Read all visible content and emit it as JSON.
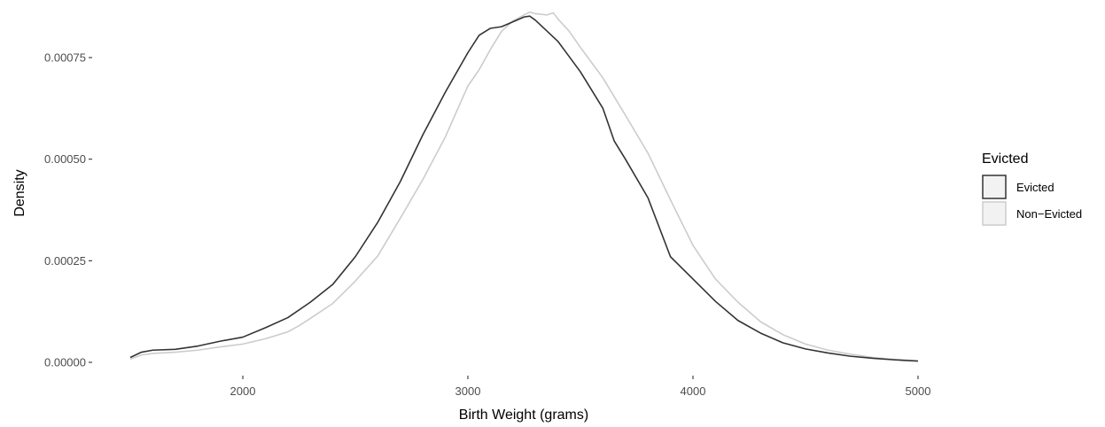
{
  "chart_data": {
    "type": "line",
    "subtype": "density",
    "xlabel": "Birth Weight (grams)",
    "ylabel": "Density",
    "xlim": [
      1500,
      5000
    ],
    "ylim": [
      0,
      0.00085
    ],
    "grid": false,
    "legend_position": "right",
    "x_ticks": [
      {
        "value": 2000,
        "label": "2000"
      },
      {
        "value": 3000,
        "label": "3000"
      },
      {
        "value": 4000,
        "label": "4000"
      },
      {
        "value": 5000,
        "label": "5000"
      }
    ],
    "y_ticks": [
      {
        "value": 0,
        "label": "0.00000"
      },
      {
        "value": 0.00025,
        "label": "0.00025"
      },
      {
        "value": 0.0005,
        "label": "0.00050"
      },
      {
        "value": 0.00075,
        "label": "0.00075"
      }
    ],
    "legend": {
      "title": "Evicted",
      "items": [
        {
          "label": "Evicted",
          "color": "#333333",
          "fill": "#f2f2f2"
        },
        {
          "label": "Non−Evicted",
          "color": "#cccccc",
          "fill": "#f2f2f2"
        }
      ]
    },
    "series": [
      {
        "name": "Evicted",
        "color": "#333333",
        "points": [
          [
            1500,
            1.2e-05
          ],
          [
            1550,
            2.5e-05
          ],
          [
            1600,
            3e-05
          ],
          [
            1700,
            3.2e-05
          ],
          [
            1800,
            4e-05
          ],
          [
            1900,
            5.2e-05
          ],
          [
            2000,
            6.2e-05
          ],
          [
            2100,
            8.5e-05
          ],
          [
            2200,
            0.00011
          ],
          [
            2300,
            0.000148
          ],
          [
            2400,
            0.000192
          ],
          [
            2500,
            0.00026
          ],
          [
            2600,
            0.000345
          ],
          [
            2700,
            0.000445
          ],
          [
            2800,
            0.00056
          ],
          [
            2900,
            0.000665
          ],
          [
            3000,
            0.000762
          ],
          [
            3050,
            0.000805
          ],
          [
            3100,
            0.000822
          ],
          [
            3150,
            0.000826
          ],
          [
            3200,
            0.000838
          ],
          [
            3250,
            0.00085
          ],
          [
            3275,
            0.000852
          ],
          [
            3300,
            0.000842
          ],
          [
            3400,
            0.00079
          ],
          [
            3500,
            0.000715
          ],
          [
            3600,
            0.000625
          ],
          [
            3650,
            0.000545
          ],
          [
            3700,
            0.0005
          ],
          [
            3800,
            0.000405
          ],
          [
            3900,
            0.00026
          ],
          [
            4000,
            0.000205
          ],
          [
            4100,
            0.00015
          ],
          [
            4200,
            0.000103
          ],
          [
            4300,
            7.2e-05
          ],
          [
            4400,
            4.8e-05
          ],
          [
            4500,
            3.3e-05
          ],
          [
            4600,
            2.3e-05
          ],
          [
            4700,
            1.5e-05
          ],
          [
            4800,
            1e-05
          ],
          [
            4900,
            6e-06
          ],
          [
            5000,
            3e-06
          ]
        ]
      },
      {
        "name": "Non−Evicted",
        "color": "#cccccc",
        "points": [
          [
            1500,
            8e-06
          ],
          [
            1550,
            1.8e-05
          ],
          [
            1600,
            2.2e-05
          ],
          [
            1700,
            2.5e-05
          ],
          [
            1800,
            3e-05
          ],
          [
            1900,
            3.8e-05
          ],
          [
            2000,
            4.5e-05
          ],
          [
            2100,
            5.8e-05
          ],
          [
            2200,
            7.5e-05
          ],
          [
            2250,
            9e-05
          ],
          [
            2300,
            0.000108
          ],
          [
            2400,
            0.000145
          ],
          [
            2500,
            0.0002
          ],
          [
            2600,
            0.000262
          ],
          [
            2700,
            0.000355
          ],
          [
            2800,
            0.00045
          ],
          [
            2900,
            0.000555
          ],
          [
            3000,
            0.00068
          ],
          [
            3050,
            0.00072
          ],
          [
            3100,
            0.00077
          ],
          [
            3150,
            0.000815
          ],
          [
            3200,
            0.00084
          ],
          [
            3250,
            0.000855
          ],
          [
            3275,
            0.000862
          ],
          [
            3300,
            0.000858
          ],
          [
            3350,
            0.000855
          ],
          [
            3380,
            0.00086
          ],
          [
            3400,
            0.000845
          ],
          [
            3450,
            0.000815
          ],
          [
            3500,
            0.000775
          ],
          [
            3600,
            0.0007
          ],
          [
            3700,
            0.000608
          ],
          [
            3800,
            0.000515
          ],
          [
            3900,
            0.0004
          ],
          [
            4000,
            0.000288
          ],
          [
            4100,
            0.000205
          ],
          [
            4200,
            0.000148
          ],
          [
            4300,
            0.0001
          ],
          [
            4400,
            6.8e-05
          ],
          [
            4500,
            4.5e-05
          ],
          [
            4600,
            3e-05
          ],
          [
            4700,
            2e-05
          ],
          [
            4800,
            1.2e-05
          ],
          [
            4900,
            7e-06
          ],
          [
            5000,
            4e-06
          ]
        ]
      }
    ]
  }
}
